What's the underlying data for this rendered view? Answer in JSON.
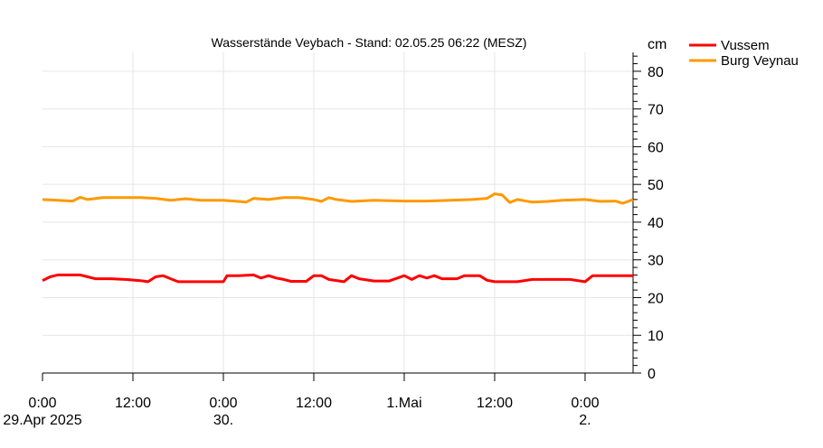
{
  "chart_data": {
    "type": "line",
    "title": "Wasserstände Veybach - Stand: 02.05.25 06:22 (MESZ)",
    "ylabel": "cm",
    "ylim": [
      0,
      85
    ],
    "yticks": [
      0,
      10,
      20,
      30,
      40,
      50,
      60,
      70,
      80
    ],
    "xlim": [
      "2025-04-29 00:00",
      "2025-05-02 06:22"
    ],
    "x_ticks": [
      {
        "x": "2025-04-29 00:00",
        "line1": "0:00",
        "line2": "29.Apr 2025"
      },
      {
        "x": "2025-04-29 12:00",
        "line1": "12:00",
        "line2": ""
      },
      {
        "x": "2025-04-30 00:00",
        "line1": "0:00",
        "line2": "30."
      },
      {
        "x": "2025-04-30 12:00",
        "line1": "12:00",
        "line2": ""
      },
      {
        "x": "2025-05-01 00:00",
        "line1": "1.Mai",
        "line2": ""
      },
      {
        "x": "2025-05-01 12:00",
        "line1": "12:00",
        "line2": ""
      },
      {
        "x": "2025-05-02 00:00",
        "line1": "0:00",
        "line2": "2."
      }
    ],
    "grid": true,
    "legend_position": "top-right",
    "series": [
      {
        "name": "Vussem",
        "color": "#ff0000",
        "points": [
          [
            "2025-04-29 00:00",
            24.5
          ],
          [
            "2025-04-29 01:00",
            25.5
          ],
          [
            "2025-04-29 02:00",
            26.0
          ],
          [
            "2025-04-29 04:00",
            26.0
          ],
          [
            "2025-04-29 05:00",
            26.0
          ],
          [
            "2025-04-29 06:00",
            25.5
          ],
          [
            "2025-04-29 07:00",
            25.0
          ],
          [
            "2025-04-29 09:00",
            25.0
          ],
          [
            "2025-04-29 11:00",
            24.8
          ],
          [
            "2025-04-29 13:00",
            24.5
          ],
          [
            "2025-04-29 14:00",
            24.2
          ],
          [
            "2025-04-29 15:00",
            25.5
          ],
          [
            "2025-04-29 16:00",
            25.8
          ],
          [
            "2025-04-29 17:00",
            25.0
          ],
          [
            "2025-04-29 18:00",
            24.2
          ],
          [
            "2025-04-29 20:00",
            24.2
          ],
          [
            "2025-04-29 22:00",
            24.2
          ],
          [
            "2025-04-30 00:00",
            24.2
          ],
          [
            "2025-04-30 00:30",
            25.8
          ],
          [
            "2025-04-30 02:00",
            25.8
          ],
          [
            "2025-04-30 04:00",
            26.0
          ],
          [
            "2025-04-30 05:00",
            25.2
          ],
          [
            "2025-04-30 06:00",
            25.8
          ],
          [
            "2025-04-30 07:00",
            25.2
          ],
          [
            "2025-04-30 08:00",
            24.8
          ],
          [
            "2025-04-30 09:00",
            24.3
          ],
          [
            "2025-04-30 11:00",
            24.3
          ],
          [
            "2025-04-30 12:00",
            25.8
          ],
          [
            "2025-04-30 13:00",
            25.8
          ],
          [
            "2025-04-30 14:00",
            24.8
          ],
          [
            "2025-04-30 16:00",
            24.2
          ],
          [
            "2025-04-30 17:00",
            25.8
          ],
          [
            "2025-04-30 18:00",
            25.0
          ],
          [
            "2025-04-30 20:00",
            24.4
          ],
          [
            "2025-04-30 22:00",
            24.4
          ],
          [
            "2025-05-01 00:00",
            25.8
          ],
          [
            "2025-05-01 01:00",
            24.8
          ],
          [
            "2025-05-01 02:00",
            25.8
          ],
          [
            "2025-05-01 03:00",
            25.2
          ],
          [
            "2025-05-01 04:00",
            25.8
          ],
          [
            "2025-05-01 05:00",
            25.0
          ],
          [
            "2025-05-01 07:00",
            25.0
          ],
          [
            "2025-05-01 08:00",
            25.8
          ],
          [
            "2025-05-01 10:00",
            25.8
          ],
          [
            "2025-05-01 11:00",
            24.6
          ],
          [
            "2025-05-01 12:00",
            24.2
          ],
          [
            "2025-05-01 15:00",
            24.2
          ],
          [
            "2025-05-01 17:00",
            24.8
          ],
          [
            "2025-05-01 20:00",
            24.8
          ],
          [
            "2025-05-01 22:00",
            24.8
          ],
          [
            "2025-05-02 00:00",
            24.2
          ],
          [
            "2025-05-02 01:00",
            25.8
          ],
          [
            "2025-05-02 04:00",
            25.8
          ],
          [
            "2025-05-02 06:22",
            25.8
          ]
        ]
      },
      {
        "name": "Burg Veynau",
        "color": "#ff9900",
        "points": [
          [
            "2025-04-29 00:00",
            46.0
          ],
          [
            "2025-04-29 02:00",
            45.8
          ],
          [
            "2025-04-29 04:00",
            45.6
          ],
          [
            "2025-04-29 05:00",
            46.6
          ],
          [
            "2025-04-29 06:00",
            46.0
          ],
          [
            "2025-04-29 08:00",
            46.5
          ],
          [
            "2025-04-29 10:00",
            46.5
          ],
          [
            "2025-04-29 13:00",
            46.5
          ],
          [
            "2025-04-29 15:00",
            46.3
          ],
          [
            "2025-04-29 17:00",
            45.8
          ],
          [
            "2025-04-29 19:00",
            46.2
          ],
          [
            "2025-04-29 21:00",
            45.8
          ],
          [
            "2025-04-30 00:00",
            45.8
          ],
          [
            "2025-04-30 02:00",
            45.5
          ],
          [
            "2025-04-30 03:00",
            45.3
          ],
          [
            "2025-04-30 04:00",
            46.3
          ],
          [
            "2025-04-30 06:00",
            46.0
          ],
          [
            "2025-04-30 08:00",
            46.5
          ],
          [
            "2025-04-30 10:00",
            46.5
          ],
          [
            "2025-04-30 12:00",
            46.0
          ],
          [
            "2025-04-30 13:00",
            45.5
          ],
          [
            "2025-04-30 14:00",
            46.5
          ],
          [
            "2025-04-30 15:00",
            46.0
          ],
          [
            "2025-04-30 17:00",
            45.5
          ],
          [
            "2025-04-30 20:00",
            45.8
          ],
          [
            "2025-05-01 00:00",
            45.6
          ],
          [
            "2025-05-01 03:00",
            45.6
          ],
          [
            "2025-05-01 06:00",
            45.8
          ],
          [
            "2025-05-01 09:00",
            46.0
          ],
          [
            "2025-05-01 11:00",
            46.3
          ],
          [
            "2025-05-01 12:00",
            47.5
          ],
          [
            "2025-05-01 13:00",
            47.2
          ],
          [
            "2025-05-01 14:00",
            45.2
          ],
          [
            "2025-05-01 15:00",
            46.0
          ],
          [
            "2025-05-01 17:00",
            45.3
          ],
          [
            "2025-05-01 19:00",
            45.5
          ],
          [
            "2025-05-01 21:00",
            45.8
          ],
          [
            "2025-05-02 00:00",
            46.0
          ],
          [
            "2025-05-02 02:00",
            45.5
          ],
          [
            "2025-05-02 04:00",
            45.6
          ],
          [
            "2025-05-02 05:00",
            45.0
          ],
          [
            "2025-05-02 06:22",
            46.0
          ]
        ]
      }
    ]
  }
}
